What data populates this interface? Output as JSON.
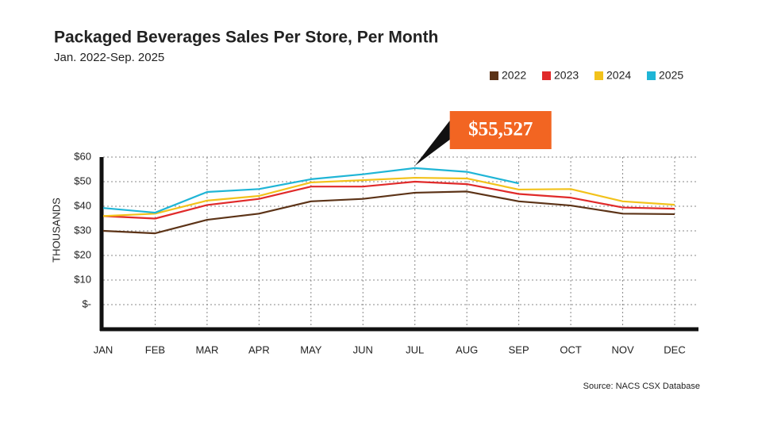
{
  "chart_data": {
    "type": "line",
    "title": "Packaged Beverages Sales Per Store, Per Month",
    "subtitle": "Jan. 2022-Sep. 2025",
    "y_label": "THOUSANDS",
    "source": "Source: NACS CSX Database",
    "categories": [
      "JAN",
      "FEB",
      "MAR",
      "APR",
      "MAY",
      "JUN",
      "JUL",
      "AUG",
      "SEP",
      "OCT",
      "NOV",
      "DEC"
    ],
    "series": [
      {
        "name": "2022",
        "color": "#5c3317",
        "values": [
          30,
          29,
          34.5,
          37,
          42,
          43,
          45.5,
          46,
          42,
          40.3,
          37,
          36.8
        ]
      },
      {
        "name": "2023",
        "color": "#e02a2a",
        "values": [
          36,
          35,
          40.5,
          43,
          48,
          48,
          50,
          49,
          45,
          43.5,
          39.5,
          39
        ]
      },
      {
        "name": "2024",
        "color": "#f2c21b",
        "values": [
          36,
          37,
          42.3,
          44.2,
          49.7,
          50.6,
          51.6,
          51.3,
          46.8,
          47,
          42,
          40.6
        ]
      },
      {
        "name": "2025",
        "color": "#1fb5d6",
        "values": [
          39.3,
          37.4,
          45.8,
          47,
          51,
          53,
          55.527,
          54,
          49.3,
          null,
          null,
          null
        ],
        "value_labels": [
          null,
          null,
          null,
          null,
          null,
          null,
          "$55,527",
          null,
          null,
          null,
          null,
          null
        ]
      }
    ],
    "ylim": [
      -10,
      60
    ],
    "yticks": [
      {
        "value": 0,
        "label": "$-"
      },
      {
        "value": 10,
        "label": "$10"
      },
      {
        "value": 20,
        "label": "$20"
      },
      {
        "value": 30,
        "label": "$30"
      },
      {
        "value": 40,
        "label": "$40"
      },
      {
        "value": 50,
        "label": "$50"
      },
      {
        "value": 60,
        "label": "$60"
      }
    ],
    "grid": true,
    "legend": "top-right",
    "annotation_color": "#f26522"
  }
}
